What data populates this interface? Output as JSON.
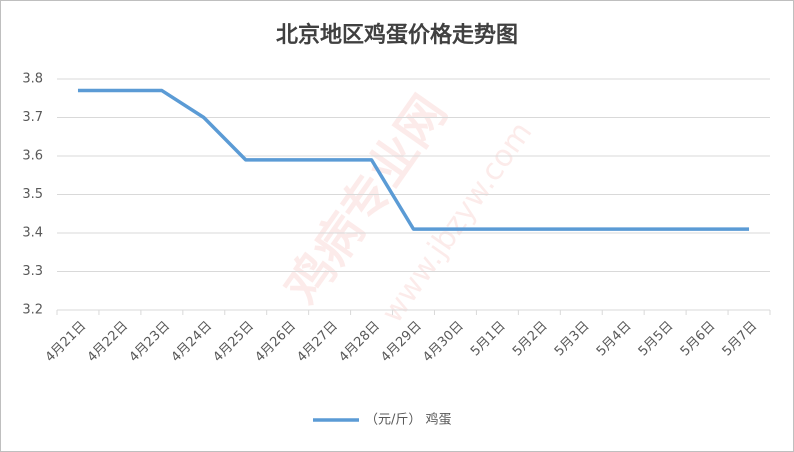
{
  "chart_data": {
    "type": "line",
    "title": "北京地区鸡蛋价格走势图",
    "categories": [
      "4月21日",
      "4月22日",
      "4月23日",
      "4月24日",
      "4月25日",
      "4月26日",
      "4月27日",
      "4月28日",
      "4月29日",
      "4月30日",
      "5月1日",
      "5月2日",
      "5月3日",
      "5月4日",
      "5月5日",
      "5月6日",
      "5月7日"
    ],
    "series": [
      {
        "name": "（元/斤） 鸡蛋",
        "color": "#5b9bd5",
        "values": [
          3.77,
          3.77,
          3.77,
          3.7,
          3.59,
          3.59,
          3.59,
          3.59,
          3.41,
          3.41,
          3.41,
          3.41,
          3.41,
          3.41,
          3.41,
          3.41,
          3.41
        ]
      }
    ],
    "ylim": [
      3.2,
      3.8
    ],
    "yticks": [
      3.2,
      3.3,
      3.4,
      3.5,
      3.6,
      3.7,
      3.8
    ],
    "grid": true,
    "legend": "bottom",
    "watermark": [
      "鸡病专业网",
      "www.jbzyw.com"
    ]
  }
}
